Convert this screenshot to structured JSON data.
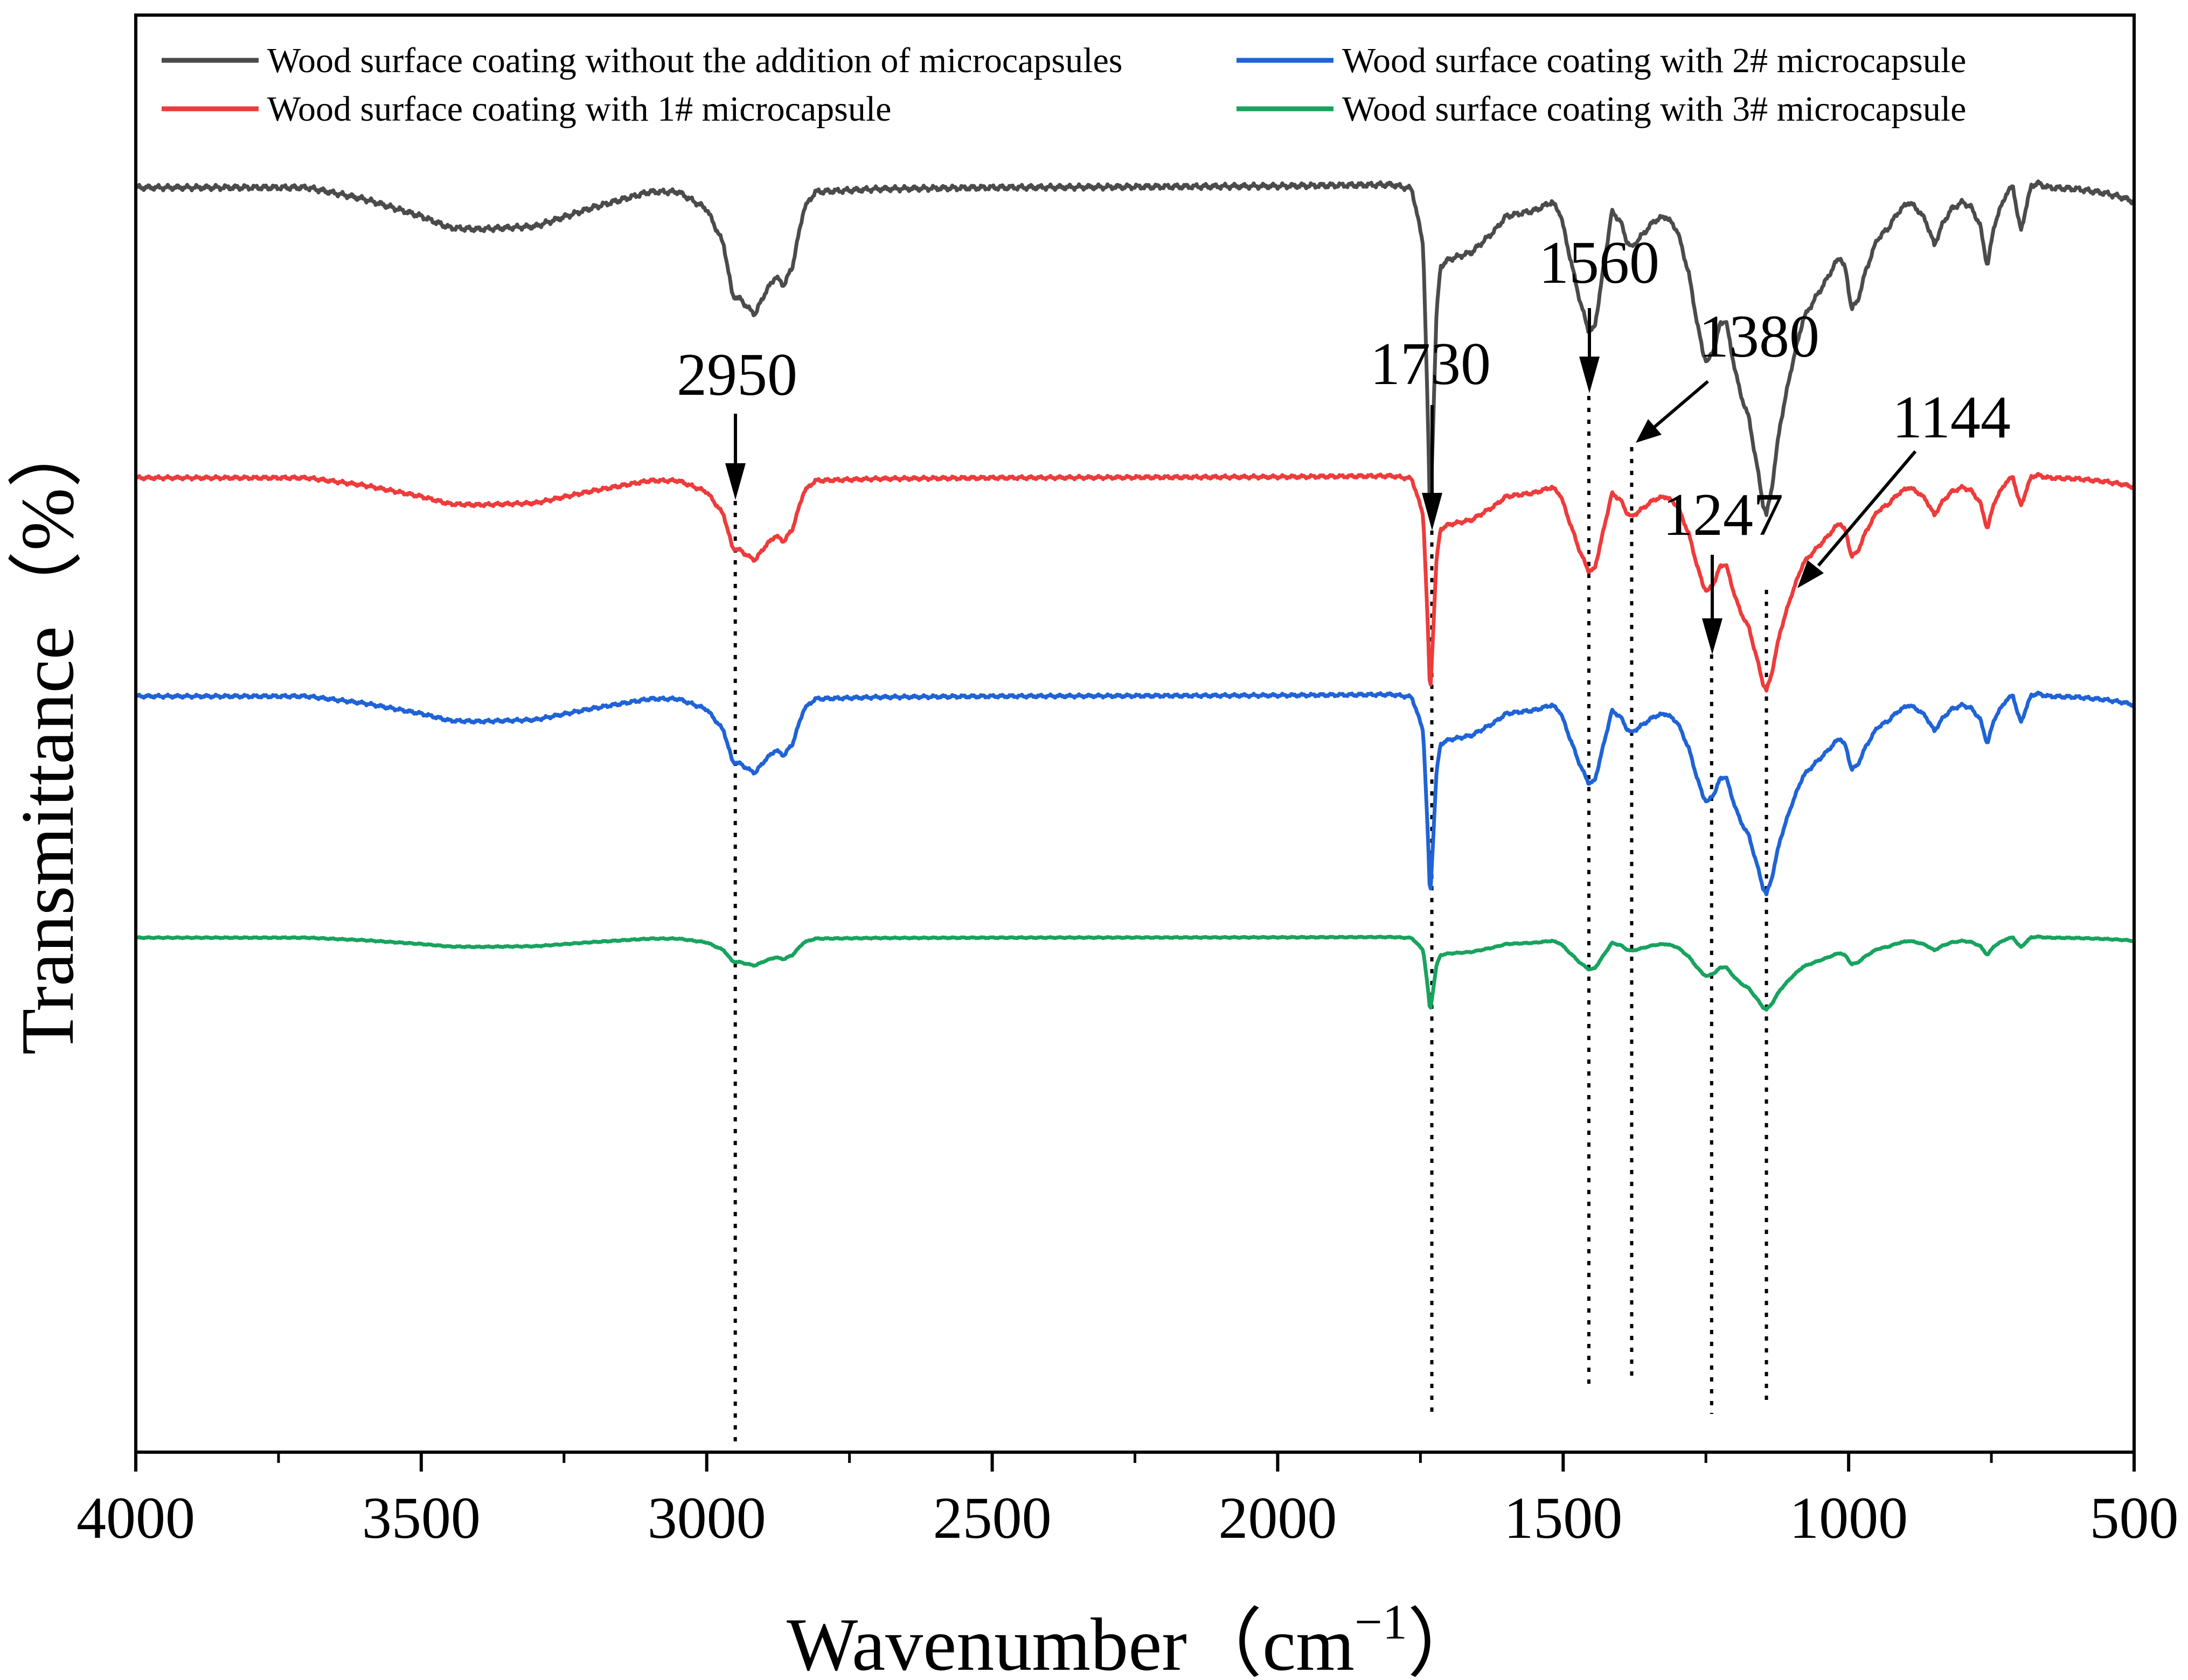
{
  "chart_data": {
    "type": "line",
    "title": "",
    "xlabel": "Wavenumber（cm",
    "xlabel_superscript": "−1",
    "xlabel_close": "）",
    "ylabel": "Transmittance（%）",
    "xlim": [
      4000,
      500
    ],
    "x_reversed": true,
    "ylim": [
      0,
      100
    ],
    "y_ticks_shown": false,
    "grid": false,
    "legend_position": "top",
    "x_ticks": [
      {
        "value": 4000,
        "label": "4000"
      },
      {
        "value": 3500,
        "label": "3500"
      },
      {
        "value": 3000,
        "label": "3000"
      },
      {
        "value": 2500,
        "label": "2500"
      },
      {
        "value": 2000,
        "label": "2000"
      },
      {
        "value": 1500,
        "label": "1500"
      },
      {
        "value": 1000,
        "label": "1000"
      },
      {
        "value": 500,
        "label": "500"
      }
    ],
    "x_minor_ticks": [
      3750,
      3250,
      2750,
      2250,
      1750,
      1250,
      750
    ],
    "base_profile": [
      [
        4000,
        88
      ],
      [
        3700,
        88
      ],
      [
        3600,
        87.2
      ],
      [
        3500,
        86
      ],
      [
        3450,
        85.2
      ],
      [
        3400,
        85.1
      ],
      [
        3300,
        85.3
      ],
      [
        3200,
        86.6
      ],
      [
        3100,
        87.7
      ],
      [
        3050,
        87.7
      ],
      [
        3000,
        86.5
      ],
      [
        2970,
        84
      ],
      [
        2955,
        80.5
      ],
      [
        2940,
        80.2
      ],
      [
        2925,
        79.5
      ],
      [
        2915,
        79.2
      ],
      [
        2900,
        80.5
      ],
      [
        2880,
        81.8
      ],
      [
        2865,
        81.2
      ],
      [
        2850,
        82.5
      ],
      [
        2830,
        86.5
      ],
      [
        2810,
        87.7
      ],
      [
        2700,
        87.9
      ],
      [
        2500,
        88
      ],
      [
        2000,
        88.1
      ],
      [
        1800,
        88.2
      ],
      [
        1765,
        87.9
      ],
      [
        1745,
        84
      ],
      [
        1737,
        72
      ],
      [
        1733,
        64.5
      ],
      [
        1729,
        70
      ],
      [
        1722,
        79
      ],
      [
        1715,
        82.5
      ],
      [
        1700,
        83
      ],
      [
        1660,
        83.5
      ],
      [
        1620,
        85
      ],
      [
        1600,
        86
      ],
      [
        1550,
        86.4
      ],
      [
        1520,
        87
      ],
      [
        1505,
        86.2
      ],
      [
        1490,
        83.5
      ],
      [
        1470,
        80
      ],
      [
        1455,
        78
      ],
      [
        1445,
        78.2
      ],
      [
        1430,
        82.2
      ],
      [
        1415,
        86.3
      ],
      [
        1400,
        85.7
      ],
      [
        1390,
        84.4
      ],
      [
        1380,
        83.8
      ],
      [
        1370,
        84.3
      ],
      [
        1340,
        85.7
      ],
      [
        1320,
        86
      ],
      [
        1300,
        85
      ],
      [
        1280,
        82
      ],
      [
        1265,
        78.5
      ],
      [
        1255,
        76.5
      ],
      [
        1247,
        75.8
      ],
      [
        1235,
        76.9
      ],
      [
        1225,
        78.5
      ],
      [
        1215,
        78.8
      ],
      [
        1205,
        76.5
      ],
      [
        1190,
        73.7
      ],
      [
        1175,
        72
      ],
      [
        1160,
        68.5
      ],
      [
        1150,
        66
      ],
      [
        1144,
        65.2
      ],
      [
        1135,
        67
      ],
      [
        1120,
        71.5
      ],
      [
        1100,
        75.5
      ],
      [
        1080,
        78.8
      ],
      [
        1060,
        80.2
      ],
      [
        1040,
        81.5
      ],
      [
        1025,
        82.6
      ],
      [
        1015,
        83.2
      ],
      [
        1005,
        82.2
      ],
      [
        995,
        79.6
      ],
      [
        985,
        80
      ],
      [
        970,
        82.2
      ],
      [
        950,
        84.4
      ],
      [
        930,
        85.2
      ],
      [
        915,
        86.2
      ],
      [
        895,
        87
      ],
      [
        880,
        86.5
      ],
      [
        865,
        85.7
      ],
      [
        850,
        84
      ],
      [
        835,
        85.5
      ],
      [
        820,
        86.5
      ],
      [
        800,
        87
      ],
      [
        785,
        86.6
      ],
      [
        770,
        85.4
      ],
      [
        757,
        82.5
      ],
      [
        745,
        85.4
      ],
      [
        725,
        87.5
      ],
      [
        712,
        88.1
      ],
      [
        703,
        85.8
      ],
      [
        698,
        85
      ],
      [
        690,
        86.5
      ],
      [
        680,
        88.1
      ],
      [
        670,
        88.3
      ],
      [
        650,
        88
      ],
      [
        600,
        87.9
      ],
      [
        550,
        87.6
      ],
      [
        520,
        87.3
      ],
      [
        500,
        87
      ]
    ],
    "series": [
      {
        "name": "Wood surface coating without the addition of microcapsules",
        "color": "#4b4b4b",
        "baseline": 88,
        "scale": 1.0
      },
      {
        "name": "Wood surface coating with 1# microcapsule",
        "color": "#ee3b3b",
        "baseline": 67.8,
        "scale": 0.65
      },
      {
        "name": "Wood surface coating with 2# microcapsule",
        "color": "#1f63d6",
        "baseline": 52.6,
        "scale": 0.605
      },
      {
        "name": "Wood surface coating with 3# microcapsule",
        "color": "#18a35e",
        "baseline": 35.8,
        "scale": 0.22
      }
    ],
    "annotations": [
      {
        "label": "2950",
        "x": 2950
      },
      {
        "label": "1730",
        "x": 1730
      },
      {
        "label": "1560",
        "x": 1455
      },
      {
        "label": "1380",
        "x": 1380
      },
      {
        "label": "1247",
        "x": 1240
      },
      {
        "label": "1144",
        "x": 1144
      }
    ]
  }
}
